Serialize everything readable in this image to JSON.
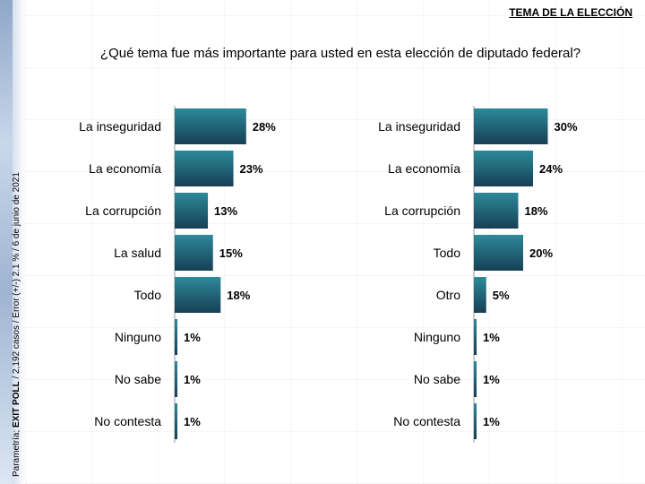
{
  "header": {
    "label": "TEMA DE LA ELECCIÓN"
  },
  "question": "¿Qué tema fue más importante para usted en esta elección de diputado federal?",
  "side_note": {
    "prefix": "Parametría; ",
    "bold": "EXIT POLL",
    "suffix": " / 2,192 casos / Error (+/-) 2.1 % / 6 de junio de 2021"
  },
  "colors": {
    "bar_top": "#2c8a9a",
    "bar_bottom": "#173f55",
    "axis": "#999999"
  },
  "chart_data": [
    {
      "type": "bar",
      "orientation": "horizontal",
      "categories": [
        "La inseguridad",
        "La economía",
        "La corrupción",
        "La salud",
        "Todo",
        "Ninguno",
        "No sabe",
        "No contesta"
      ],
      "values": [
        28,
        23,
        13,
        15,
        18,
        1,
        1,
        1
      ],
      "value_suffix": "%"
    },
    {
      "type": "bar",
      "orientation": "horizontal",
      "categories": [
        "La inseguridad",
        "La economía",
        "La corrupción",
        "Todo",
        "Otro",
        "Ninguno",
        "No sabe",
        "No contesta"
      ],
      "values": [
        30,
        24,
        18,
        20,
        5,
        1,
        1,
        1
      ],
      "value_suffix": "%"
    }
  ]
}
